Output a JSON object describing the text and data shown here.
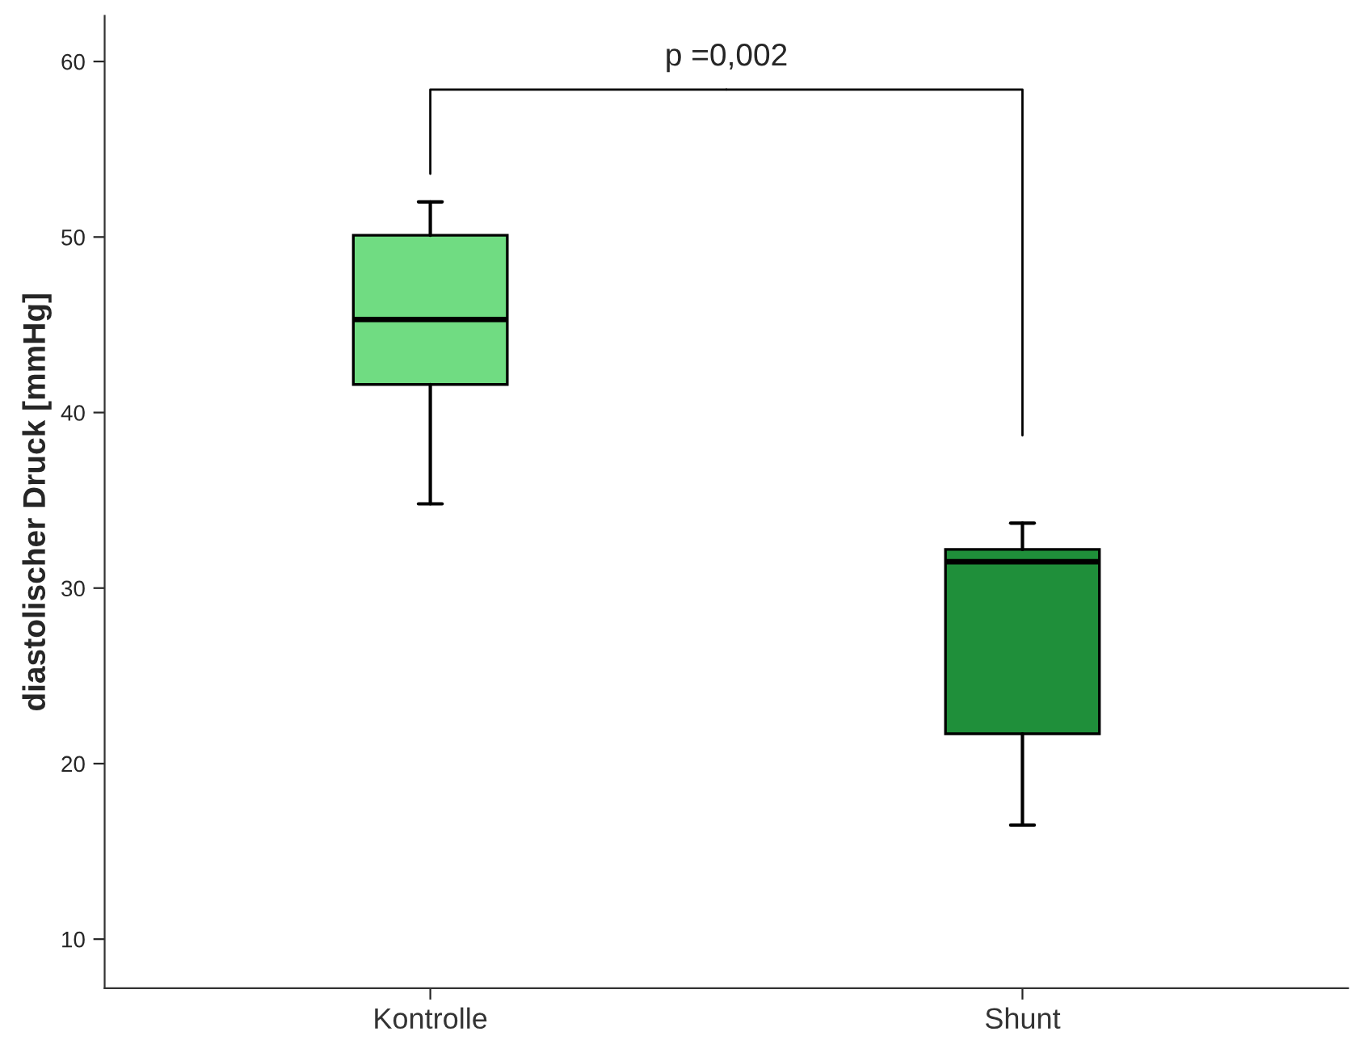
{
  "chart_data": {
    "type": "box",
    "ylabel": "diastolischer Druck [mmHg]",
    "categories": [
      "Kontrolle",
      "Shunt"
    ],
    "boxes": [
      {
        "low": 34.8,
        "q1": 41.6,
        "median": 45.3,
        "q3": 50.1,
        "high": 52.0
      },
      {
        "low": 16.5,
        "q1": 21.7,
        "median": 31.5,
        "q3": 32.2,
        "high": 33.7
      }
    ],
    "colors": [
      "#70dc82",
      "#1f8f3a"
    ],
    "ylim": [
      7.2,
      62.6
    ],
    "yticks": [
      10,
      20,
      30,
      40,
      50,
      60
    ],
    "annotations": [
      "p =0,002"
    ],
    "grid": false,
    "legend": false
  }
}
